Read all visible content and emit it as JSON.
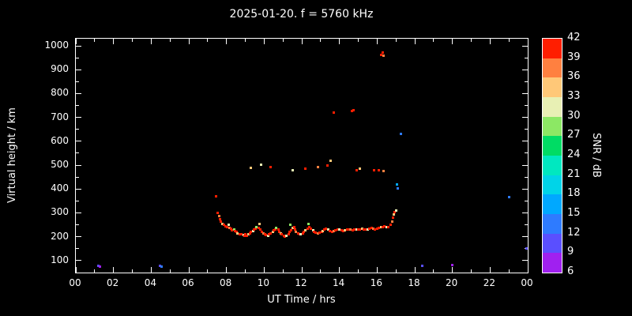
{
  "title": "2025-01-20. f = 5760 kHz",
  "chart_data": {
    "type": "scatter",
    "title": "2025-01-20. f = 5760 kHz",
    "xlabel": "UT Time / hrs",
    "ylabel": "Virtual height / km",
    "colorbar_label": "SNR / dB",
    "background": "#000000",
    "axis_color": "#ffffff",
    "grid": false,
    "xlim": [
      0,
      24
    ],
    "ylim": [
      50,
      1030
    ],
    "x_major_ticks": [
      0,
      2,
      4,
      6,
      8,
      10,
      12,
      14,
      16,
      18,
      20,
      22,
      24
    ],
    "x_tick_labels": [
      "00",
      "02",
      "04",
      "06",
      "08",
      "10",
      "12",
      "14",
      "16",
      "18",
      "20",
      "22",
      "00"
    ],
    "x_minor_ticks": [
      1,
      3,
      5,
      7,
      9,
      11,
      13,
      15,
      17,
      19,
      21,
      23
    ],
    "y_major_ticks": [
      100,
      200,
      300,
      400,
      500,
      600,
      700,
      800,
      900,
      1000
    ],
    "y_tick_labels": [
      "100",
      "200",
      "300",
      "400",
      "500",
      "600",
      "700",
      "800",
      "900",
      "1000"
    ],
    "y_minor_ticks": [
      150,
      250,
      350,
      450,
      550,
      650,
      750,
      850,
      950
    ],
    "colorbar": {
      "min": 6,
      "max": 42,
      "step": 3,
      "ticks": [
        6,
        9,
        12,
        15,
        18,
        21,
        24,
        27,
        30,
        33,
        36,
        39,
        42
      ],
      "colors": [
        "#A020F0",
        "#5A4FFF",
        "#2E7BFF",
        "#00A8FF",
        "#00D4E8",
        "#00E8C0",
        "#00DC64",
        "#8CE864",
        "#E8F0B4",
        "#FFC878",
        "#FF8040",
        "#FF1E00"
      ]
    },
    "points": [
      [
        1.2,
        78,
        10
      ],
      [
        1.3,
        74,
        8
      ],
      [
        4.45,
        78,
        10
      ],
      [
        4.55,
        76,
        12
      ],
      [
        18.4,
        78,
        9
      ],
      [
        20.0,
        80,
        8
      ],
      [
        23.0,
        365,
        12
      ],
      [
        23.95,
        150,
        10
      ],
      [
        17.05,
        420,
        15
      ],
      [
        17.1,
        404,
        12
      ],
      [
        17.25,
        630,
        13
      ],
      [
        7.45,
        370,
        39
      ],
      [
        7.55,
        300,
        40
      ],
      [
        7.6,
        286,
        36
      ],
      [
        7.65,
        272,
        40
      ],
      [
        7.7,
        264,
        39
      ],
      [
        7.8,
        254,
        33
      ],
      [
        7.85,
        249,
        40
      ],
      [
        7.95,
        244,
        39
      ],
      [
        8.05,
        241,
        40
      ],
      [
        8.1,
        250,
        30
      ],
      [
        8.15,
        237,
        36
      ],
      [
        8.25,
        234,
        40
      ],
      [
        8.3,
        228,
        39
      ],
      [
        8.4,
        232,
        27
      ],
      [
        8.45,
        224,
        40
      ],
      [
        8.55,
        221,
        39
      ],
      [
        8.6,
        214,
        33
      ],
      [
        8.7,
        211,
        40
      ],
      [
        8.8,
        209,
        39
      ],
      [
        8.9,
        207,
        30
      ],
      [
        8.95,
        204,
        40
      ],
      [
        9.0,
        209,
        39
      ],
      [
        9.1,
        204,
        40
      ],
      [
        9.15,
        211,
        33
      ],
      [
        9.25,
        214,
        39
      ],
      [
        9.3,
        219,
        40
      ],
      [
        9.4,
        224,
        30
      ],
      [
        9.45,
        229,
        39
      ],
      [
        9.55,
        234,
        40
      ],
      [
        9.6,
        241,
        27
      ],
      [
        9.7,
        237,
        39
      ],
      [
        9.75,
        254,
        33
      ],
      [
        9.8,
        229,
        40
      ],
      [
        9.9,
        221,
        39
      ],
      [
        9.95,
        214,
        36
      ],
      [
        10.05,
        211,
        40
      ],
      [
        10.1,
        207,
        39
      ],
      [
        10.2,
        204,
        30
      ],
      [
        10.25,
        209,
        40
      ],
      [
        10.35,
        214,
        39
      ],
      [
        10.45,
        219,
        33
      ],
      [
        10.5,
        227,
        40
      ],
      [
        10.6,
        231,
        39
      ],
      [
        10.65,
        237,
        27
      ],
      [
        10.75,
        229,
        40
      ],
      [
        10.8,
        221,
        39
      ],
      [
        10.9,
        214,
        33
      ],
      [
        10.95,
        209,
        40
      ],
      [
        11.05,
        204,
        39
      ],
      [
        11.1,
        200,
        40
      ],
      [
        11.2,
        204,
        30
      ],
      [
        11.3,
        211,
        39
      ],
      [
        11.35,
        219,
        40
      ],
      [
        11.4,
        249,
        27
      ],
      [
        11.45,
        227,
        39
      ],
      [
        11.5,
        237,
        33
      ],
      [
        11.6,
        241,
        40
      ],
      [
        11.65,
        231,
        39
      ],
      [
        11.7,
        221,
        36
      ],
      [
        11.8,
        214,
        40
      ],
      [
        11.9,
        209,
        39
      ],
      [
        11.95,
        212,
        30
      ],
      [
        12.05,
        215,
        40
      ],
      [
        12.1,
        219,
        39
      ],
      [
        12.2,
        227,
        33
      ],
      [
        12.3,
        234,
        40
      ],
      [
        12.35,
        254,
        27
      ],
      [
        12.4,
        239,
        39
      ],
      [
        12.5,
        234,
        40
      ],
      [
        12.6,
        227,
        30
      ],
      [
        12.65,
        221,
        39
      ],
      [
        12.75,
        217,
        40
      ],
      [
        12.85,
        214,
        36
      ],
      [
        12.95,
        217,
        39
      ],
      [
        13.05,
        221,
        40
      ],
      [
        13.1,
        225,
        33
      ],
      [
        13.2,
        229,
        39
      ],
      [
        13.3,
        233,
        40
      ],
      [
        13.4,
        229,
        30
      ],
      [
        13.5,
        225,
        39
      ],
      [
        13.6,
        222,
        40
      ],
      [
        13.7,
        225,
        36
      ],
      [
        13.8,
        227,
        39
      ],
      [
        13.9,
        230,
        40
      ],
      [
        14.0,
        231,
        30
      ],
      [
        14.1,
        227,
        39
      ],
      [
        14.2,
        224,
        40
      ],
      [
        14.3,
        227,
        33
      ],
      [
        14.4,
        230,
        39
      ],
      [
        14.5,
        232,
        40
      ],
      [
        14.6,
        229,
        36
      ],
      [
        14.7,
        227,
        39
      ],
      [
        14.8,
        230,
        40
      ],
      [
        14.9,
        232,
        30
      ],
      [
        15.0,
        229,
        40
      ],
      [
        15.1,
        231,
        39
      ],
      [
        15.2,
        234,
        33
      ],
      [
        15.3,
        231,
        40
      ],
      [
        15.4,
        229,
        39
      ],
      [
        15.5,
        232,
        30
      ],
      [
        15.6,
        234,
        40
      ],
      [
        15.7,
        237,
        39
      ],
      [
        15.8,
        234,
        36
      ],
      [
        15.9,
        231,
        40
      ],
      [
        16.0,
        234,
        39
      ],
      [
        16.1,
        237,
        40
      ],
      [
        16.2,
        240,
        33
      ],
      [
        16.3,
        242,
        39
      ],
      [
        16.4,
        245,
        40
      ],
      [
        16.5,
        242,
        30
      ],
      [
        16.6,
        240,
        39
      ],
      [
        16.7,
        251,
        40
      ],
      [
        16.8,
        265,
        36
      ],
      [
        16.85,
        279,
        39
      ],
      [
        16.9,
        294,
        33
      ],
      [
        16.95,
        304,
        40
      ],
      [
        17.0,
        311,
        30
      ],
      [
        9.3,
        490,
        33
      ],
      [
        9.85,
        502,
        30
      ],
      [
        10.35,
        492,
        39
      ],
      [
        11.5,
        480,
        30
      ],
      [
        12.2,
        486,
        40
      ],
      [
        12.85,
        492,
        36
      ],
      [
        13.35,
        500,
        40
      ],
      [
        13.55,
        520,
        33
      ],
      [
        14.9,
        480,
        39
      ],
      [
        15.1,
        486,
        33
      ],
      [
        15.85,
        480,
        39
      ],
      [
        16.1,
        478,
        40
      ],
      [
        16.35,
        474,
        36
      ],
      [
        13.7,
        722,
        40
      ],
      [
        14.65,
        728,
        40
      ],
      [
        14.75,
        732,
        39
      ],
      [
        16.2,
        962,
        40
      ],
      [
        16.28,
        972,
        39
      ],
      [
        16.35,
        958,
        36
      ]
    ]
  }
}
